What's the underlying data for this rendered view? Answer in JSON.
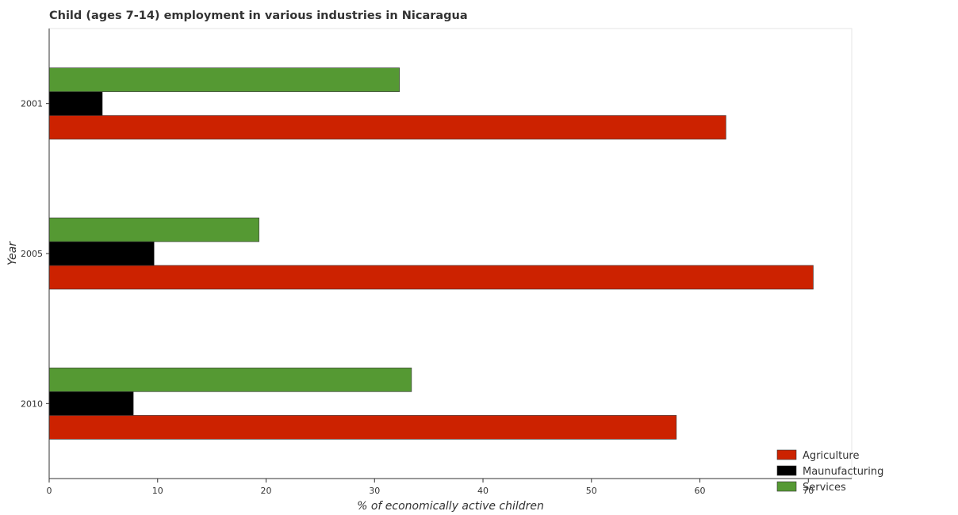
{
  "chart_data": {
    "type": "bar",
    "orientation": "horizontal",
    "title": "Child (ages 7-14) employment in various industries in Nicaragua",
    "xlabel": "% of economically active children",
    "ylabel": "Year",
    "categories": [
      "2001",
      "2005",
      "2010"
    ],
    "series": [
      {
        "name": "Agriculture",
        "color": "#cc2200",
        "values": [
          62.4,
          70.45,
          57.83
        ]
      },
      {
        "name": "Maunufacturing",
        "color": "#000000",
        "values": [
          4.9,
          9.67,
          7.76
        ]
      },
      {
        "name": "Services",
        "color": "#559933",
        "values": [
          32.3,
          19.35,
          33.41
        ]
      }
    ],
    "xlim": [
      0,
      74
    ],
    "xticks": [
      0,
      10,
      20,
      30,
      40,
      50,
      60,
      70
    ],
    "grid": false,
    "legend": "bottom-right"
  }
}
